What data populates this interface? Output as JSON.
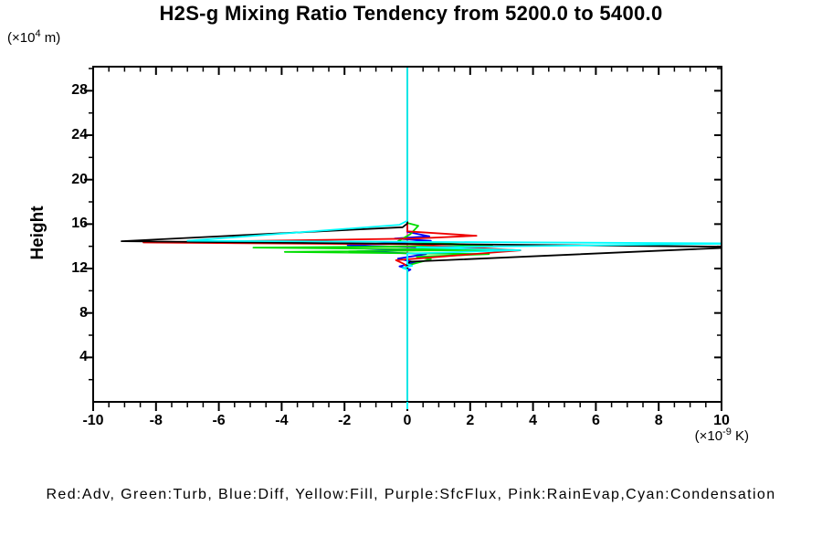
{
  "title": "H2S-g Mixing Ratio Tendency from 5200.0 to 5400.0",
  "y_axis": {
    "title": "Height",
    "unit": {
      "prefix": "(×10",
      "exp": "4",
      "suffix": " m)"
    }
  },
  "x_axis": {
    "unit": {
      "prefix": "(×10",
      "exp": "-9",
      "suffix": " K)"
    }
  },
  "legend": {
    "text": "Red:Adv, Green:Turb, Blue:Diff, Yellow:Fill, Purple:SfcFlux, Pink:RainEvap,Cyan:Condensation",
    "items": [
      {
        "color_name": "Red",
        "label": "Adv"
      },
      {
        "color_name": "Green",
        "label": "Turb"
      },
      {
        "color_name": "Blue",
        "label": "Diff"
      },
      {
        "color_name": "Yellow",
        "label": "Fill"
      },
      {
        "color_name": "Purple",
        "label": "SfcFlux"
      },
      {
        "color_name": "Pink",
        "label": "RainEvap"
      },
      {
        "color_name": "Cyan",
        "label": "Condensation"
      }
    ]
  },
  "chart_data": {
    "type": "line",
    "subtype": "vertical-profile (x = tendency value, y = height)",
    "title": "H2S-g Mixing Ratio Tendency from 5200.0 to 5400.0",
    "xlabel": "(×10^-9 K)",
    "ylabel": "Height (×10^4 m)",
    "xlim": [
      -10,
      10
    ],
    "ylim": [
      0,
      30.2
    ],
    "x_major_ticks": [
      -10,
      -8,
      -6,
      -4,
      -2,
      0,
      2,
      4,
      6,
      8,
      10
    ],
    "x_minor_step": 0.5,
    "y_major_ticks": [
      4,
      8,
      12,
      16,
      20,
      24,
      28
    ],
    "y_minor_step": 2,
    "grid": false,
    "frame": true,
    "zero_reference": "cyan vertical line at x=0 spanning full height",
    "series": [
      {
        "name": "Fill",
        "color": "#ffff00",
        "points": [
          [
            0,
            0
          ],
          [
            0,
            30.2
          ]
        ]
      },
      {
        "name": "SfcFlux",
        "color": "#a020f0",
        "points": [
          [
            0,
            0
          ],
          [
            0,
            30.2
          ]
        ]
      },
      {
        "name": "RainEvap",
        "color": "#ff69b4",
        "points": [
          [
            0,
            0
          ],
          [
            0,
            30.2
          ]
        ]
      },
      {
        "name": "Diff",
        "color": "#0000ff",
        "points": [
          [
            0,
            0
          ],
          [
            0,
            11.75
          ],
          [
            0.1,
            11.9
          ],
          [
            -0.25,
            12.2
          ],
          [
            0.25,
            12.55
          ],
          [
            -0.3,
            12.9
          ],
          [
            0.6,
            13.3
          ],
          [
            -1.6,
            13.55
          ],
          [
            1.35,
            13.82
          ],
          [
            -1.9,
            14.1
          ],
          [
            0.75,
            14.5
          ],
          [
            -0.4,
            14.7
          ],
          [
            0.7,
            14.9
          ],
          [
            0,
            15.3
          ],
          [
            0,
            30.2
          ]
        ]
      },
      {
        "name": "Turb",
        "color": "#00dd00",
        "points": [
          [
            0,
            0
          ],
          [
            0,
            12.2
          ],
          [
            0.1,
            12.35
          ],
          [
            0.75,
            12.85
          ],
          [
            0.3,
            13.05
          ],
          [
            2.6,
            13.3
          ],
          [
            -3.9,
            13.5
          ],
          [
            2.7,
            13.68
          ],
          [
            -4.9,
            13.88
          ],
          [
            2.7,
            14.05
          ],
          [
            -0.3,
            14.45
          ],
          [
            0.1,
            15.1
          ],
          [
            0.35,
            15.85
          ],
          [
            0,
            16.1
          ],
          [
            0,
            30.2
          ]
        ]
      },
      {
        "name": "Adv",
        "color": "#ee0000",
        "points": [
          [
            0,
            0
          ],
          [
            0,
            12.1
          ],
          [
            -0.1,
            12.4
          ],
          [
            -0.36,
            12.75
          ],
          [
            0.1,
            12.85
          ],
          [
            3.6,
            13.64
          ],
          [
            0.1,
            14.18
          ],
          [
            -8.4,
            14.34
          ],
          [
            0.2,
            14.7
          ],
          [
            2.2,
            14.95
          ],
          [
            0,
            15.35
          ],
          [
            0,
            30.2
          ]
        ]
      },
      {
        "name": "black (unlabeled)",
        "color": "#000000",
        "points": [
          [
            0,
            0
          ],
          [
            0,
            12.45
          ],
          [
            0.1,
            12.62
          ],
          [
            10.8,
            13.95
          ],
          [
            -9.1,
            14.46
          ],
          [
            -0.15,
            15.72
          ],
          [
            0,
            16.05
          ],
          [
            0,
            30.2
          ]
        ]
      },
      {
        "name": "Condensation",
        "color": "#00ffff",
        "points": [
          [
            0,
            0
          ],
          [
            0,
            11.9
          ],
          [
            -0.15,
            12.05
          ],
          [
            0.15,
            12.25
          ],
          [
            0,
            12.4
          ],
          [
            0,
            13.35
          ],
          [
            3.6,
            13.65
          ],
          [
            0.3,
            13.9
          ],
          [
            10.8,
            14.25
          ],
          [
            -7.0,
            14.5
          ],
          [
            -0.25,
            15.94
          ],
          [
            0,
            16.3
          ],
          [
            0,
            30.2
          ]
        ]
      }
    ]
  }
}
